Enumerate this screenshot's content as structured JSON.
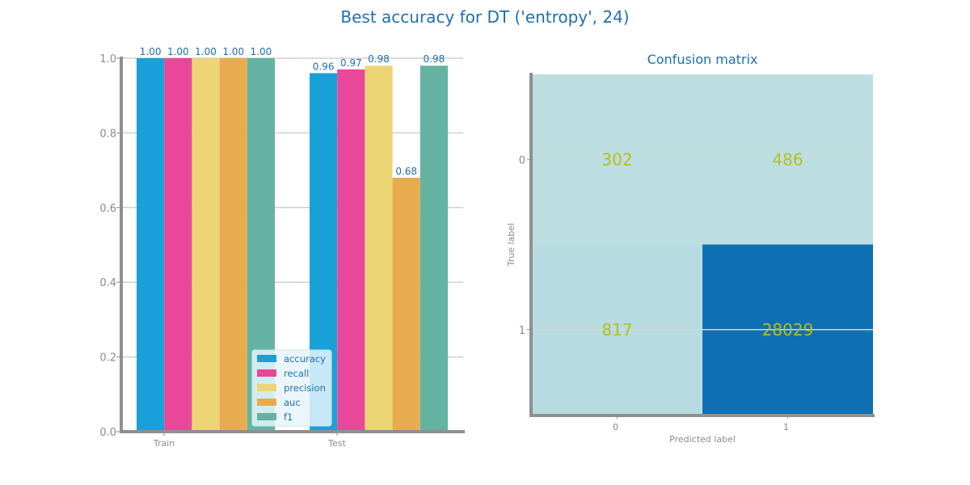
{
  "figure": {
    "title": "Best accuracy for DT ('entropy', 24)"
  },
  "chart_data": [
    {
      "type": "bar",
      "title": "",
      "xlabel": "",
      "ylabel": "",
      "categories": [
        "Train",
        "Test"
      ],
      "ylim": [
        0,
        1.0
      ],
      "yticks": [
        "0.0",
        "0.2",
        "0.4",
        "0.6",
        "0.8",
        "1.0"
      ],
      "grid": true,
      "legend_position": "bottom-right",
      "series": [
        {
          "name": "accuracy",
          "values": [
            1.0,
            0.96
          ],
          "labels": [
            "1.00",
            "0.96"
          ],
          "color": "#1aa0d8"
        },
        {
          "name": "recall",
          "values": [
            1.0,
            0.97
          ],
          "labels": [
            "1.00",
            "0.97"
          ],
          "color": "#e8479a"
        },
        {
          "name": "precision",
          "values": [
            1.0,
            0.98
          ],
          "labels": [
            "1.00",
            "0.98"
          ],
          "color": "#ecd574"
        },
        {
          "name": "auc",
          "values": [
            1.0,
            0.68
          ],
          "labels": [
            "1.00",
            "0.68"
          ],
          "color": "#e8ac4f"
        },
        {
          "name": "f1",
          "values": [
            1.0,
            0.98
          ],
          "labels": [
            "1.00",
            "0.98"
          ],
          "color": "#63b3a0"
        }
      ]
    },
    {
      "type": "heatmap",
      "title": "Confusion matrix",
      "xlabel": "Predicted label",
      "ylabel": "True label",
      "xticks": [
        "0",
        "1"
      ],
      "yticks": [
        "0",
        "1"
      ],
      "values": [
        [
          302,
          486
        ],
        [
          817,
          28029
        ]
      ],
      "labels": [
        [
          "302",
          "486"
        ],
        [
          "817",
          "28029"
        ]
      ],
      "colors": [
        [
          "#bddee1",
          "#bddee1"
        ],
        [
          "#b6dbe0",
          "#0e70b2"
        ]
      ]
    }
  ]
}
